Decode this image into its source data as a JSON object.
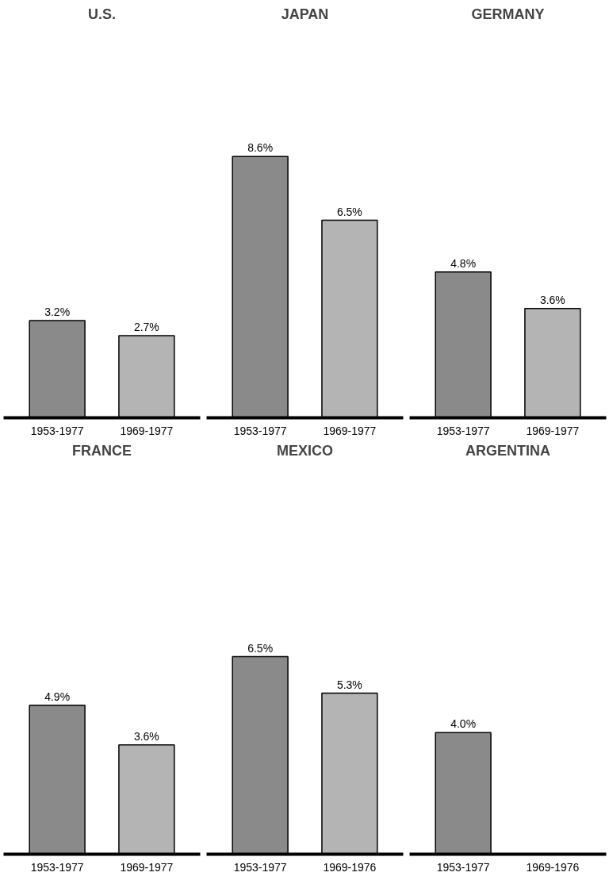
{
  "chart_data": [
    {
      "type": "bar",
      "title": "U.S.",
      "categories": [
        "1953-1977",
        "1969-1977"
      ],
      "values": [
        3.2,
        2.7
      ],
      "value_labels": [
        "3.2%",
        "2.7%"
      ],
      "colors": [
        "#8a8a8a",
        "#b4b4b4"
      ]
    },
    {
      "type": "bar",
      "title": "JAPAN",
      "categories": [
        "1953-1977",
        "1969-1977"
      ],
      "values": [
        8.6,
        6.5
      ],
      "value_labels": [
        "8.6%",
        "6.5%"
      ],
      "colors": [
        "#8a8a8a",
        "#b4b4b4"
      ]
    },
    {
      "type": "bar",
      "title": "GERMANY",
      "categories": [
        "1953-1977",
        "1969-1977"
      ],
      "values": [
        4.8,
        3.6
      ],
      "value_labels": [
        "4.8%",
        "3.6%"
      ],
      "colors": [
        "#8a8a8a",
        "#b4b4b4"
      ]
    },
    {
      "type": "bar",
      "title": "FRANCE",
      "categories": [
        "1953-1977",
        "1969-1977"
      ],
      "values": [
        4.9,
        3.6
      ],
      "value_labels": [
        "4.9%",
        "3.6%"
      ],
      "colors": [
        "#8a8a8a",
        "#b4b4b4"
      ]
    },
    {
      "type": "bar",
      "title": "MEXICO",
      "categories": [
        "1953-1977",
        "1969-1976"
      ],
      "values": [
        6.5,
        5.3
      ],
      "value_labels": [
        "6.5%",
        "5.3%"
      ],
      "colors": [
        "#8a8a8a",
        "#b4b4b4"
      ]
    },
    {
      "type": "bar",
      "title": "ARGENTINA",
      "categories": [
        "1953-1977",
        "1969-1976"
      ],
      "values": [
        4.0,
        null
      ],
      "value_labels": [
        "4.0%",
        null
      ],
      "colors": [
        "#8a8a8a",
        "#b4b4b4"
      ]
    }
  ]
}
